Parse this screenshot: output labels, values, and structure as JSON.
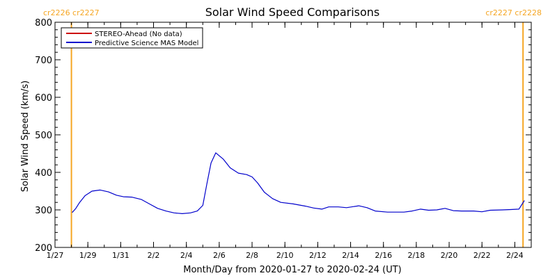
{
  "chart_data": {
    "type": "line",
    "title": "Solar Wind Speed Comparisons",
    "xlabel": "Month/Day from 2020-01-27 to 2020-02-24 (UT)",
    "ylabel": "Solar Wind Speed (km/s)",
    "x_unit": "day",
    "xlim": [
      "2020-01-27",
      "2020-02-25"
    ],
    "ylim": [
      200,
      800
    ],
    "y_ticks": [
      200,
      300,
      400,
      500,
      600,
      700,
      800
    ],
    "x_ticks": [
      {
        "date": "2020-01-27",
        "label": "1/27"
      },
      {
        "date": "2020-01-29",
        "label": "1/29"
      },
      {
        "date": "2020-01-31",
        "label": "1/31"
      },
      {
        "date": "2020-02-02",
        "label": "2/2"
      },
      {
        "date": "2020-02-04",
        "label": "2/4"
      },
      {
        "date": "2020-02-06",
        "label": "2/6"
      },
      {
        "date": "2020-02-08",
        "label": "2/8"
      },
      {
        "date": "2020-02-10",
        "label": "2/10"
      },
      {
        "date": "2020-02-12",
        "label": "2/12"
      },
      {
        "date": "2020-02-14",
        "label": "2/14"
      },
      {
        "date": "2020-02-16",
        "label": "2/16"
      },
      {
        "date": "2020-02-18",
        "label": "2/18"
      },
      {
        "date": "2020-02-20",
        "label": "2/20"
      },
      {
        "date": "2020-02-22",
        "label": "2/22"
      },
      {
        "date": "2020-02-24",
        "label": "2/24"
      }
    ],
    "legend_position": "top-left",
    "grid": false,
    "series": [
      {
        "name": "STEREO-Ahead (No data)",
        "color": "#cc0000",
        "points": []
      },
      {
        "name": "Predictive Science MAS Model",
        "color": "#0000cc",
        "points": [
          [
            "2020-01-28T01:00",
            293
          ],
          [
            "2020-01-28T06:00",
            303
          ],
          [
            "2020-01-28T12:00",
            320
          ],
          [
            "2020-01-28T20:00",
            338
          ],
          [
            "2020-01-29T06:00",
            350
          ],
          [
            "2020-01-29T18:00",
            353
          ],
          [
            "2020-01-30T06:00",
            348
          ],
          [
            "2020-01-30T18:00",
            339
          ],
          [
            "2020-01-31T04:00",
            335
          ],
          [
            "2020-01-31T16:00",
            334
          ],
          [
            "2020-02-01T06:00",
            328
          ],
          [
            "2020-02-01T18:00",
            316
          ],
          [
            "2020-02-02T06:00",
            304
          ],
          [
            "2020-02-02T18:00",
            297
          ],
          [
            "2020-02-03T06:00",
            292
          ],
          [
            "2020-02-03T18:00",
            290
          ],
          [
            "2020-02-04T06:00",
            292
          ],
          [
            "2020-02-04T16:00",
            297
          ],
          [
            "2020-02-05T00:00",
            312
          ],
          [
            "2020-02-05T06:00",
            370
          ],
          [
            "2020-02-05T12:00",
            425
          ],
          [
            "2020-02-05T19:00",
            452
          ],
          [
            "2020-02-06T06:00",
            435
          ],
          [
            "2020-02-06T16:00",
            412
          ],
          [
            "2020-02-07T04:00",
            398
          ],
          [
            "2020-02-07T16:00",
            394
          ],
          [
            "2020-02-08T00:00",
            388
          ],
          [
            "2020-02-08T08:00",
            372
          ],
          [
            "2020-02-08T18:00",
            347
          ],
          [
            "2020-02-09T06:00",
            330
          ],
          [
            "2020-02-09T18:00",
            320
          ],
          [
            "2020-02-10T12:00",
            316
          ],
          [
            "2020-02-11T06:00",
            310
          ],
          [
            "2020-02-11T18:00",
            305
          ],
          [
            "2020-02-12T06:00",
            302
          ],
          [
            "2020-02-12T16:00",
            308
          ],
          [
            "2020-02-13T06:00",
            308
          ],
          [
            "2020-02-13T18:00",
            306
          ],
          [
            "2020-02-14T12:00",
            311
          ],
          [
            "2020-02-15T00:00",
            306
          ],
          [
            "2020-02-15T12:00",
            297
          ],
          [
            "2020-02-16T06:00",
            294
          ],
          [
            "2020-02-17T06:00",
            294
          ],
          [
            "2020-02-17T18:00",
            297
          ],
          [
            "2020-02-18T06:00",
            302
          ],
          [
            "2020-02-18T18:00",
            299
          ],
          [
            "2020-02-19T06:00",
            300
          ],
          [
            "2020-02-19T18:00",
            304
          ],
          [
            "2020-02-20T06:00",
            298
          ],
          [
            "2020-02-20T18:00",
            297
          ],
          [
            "2020-02-21T12:00",
            297
          ],
          [
            "2020-02-22T00:00",
            295
          ],
          [
            "2020-02-22T12:00",
            299
          ],
          [
            "2020-02-23T06:00",
            300
          ],
          [
            "2020-02-23T18:00",
            301
          ],
          [
            "2020-02-24T06:00",
            302
          ],
          [
            "2020-02-24T14:00",
            325
          ]
        ]
      }
    ],
    "annotations": [
      {
        "date": "2020-01-28T00:00",
        "color": "#f5a623",
        "label": "cr2226 cr2227"
      },
      {
        "date": "2020-02-24T12:00",
        "color": "#f5a623",
        "label": "cr2227 cr2228"
      }
    ]
  }
}
